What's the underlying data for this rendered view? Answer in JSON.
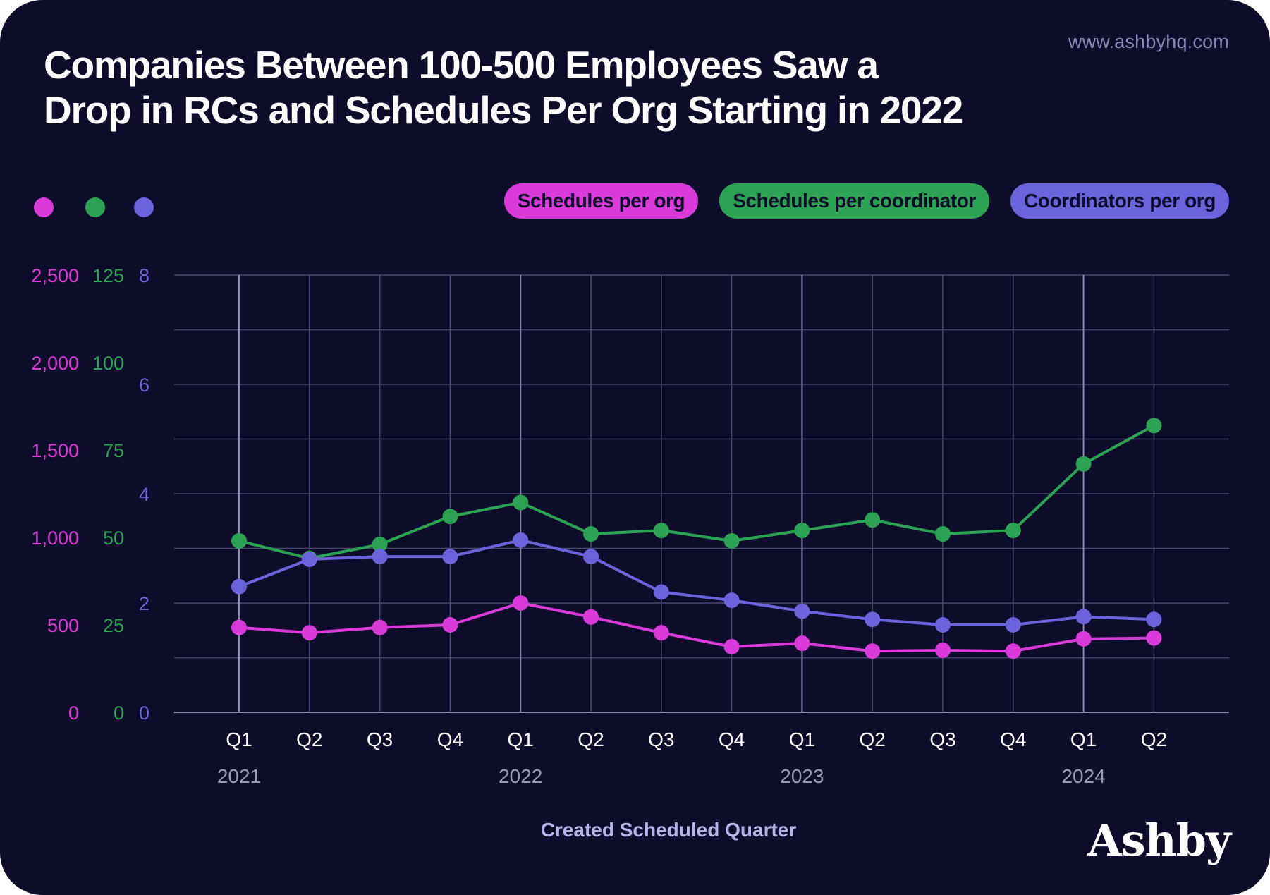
{
  "site": "www.ashbyhq.com",
  "title_line1": "Companies Between 100-500 Employees Saw a",
  "title_line2": "Drop in RCs and Schedules Per Org Starting in 2022",
  "brand": "Ashby",
  "colors": {
    "background": "#0e0c2b",
    "schedules_per_org": "#d93ad9",
    "schedules_per_coordinator": "#2ba353",
    "coordinators_per_org": "#6b63dc",
    "grid": "#4a4870",
    "tick_text": "#ffffff",
    "year_text": "#9a97b8",
    "xlabel_text": "#b7b3ea"
  },
  "chart_data": {
    "type": "line",
    "title": "Companies Between 100-500 Employees Saw a Drop in RCs and Schedules Per Org Starting in 2022",
    "xlabel": "Created Scheduled Quarter",
    "categories": [
      "Q1",
      "Q2",
      "Q3",
      "Q4",
      "Q1",
      "Q2",
      "Q3",
      "Q4",
      "Q1",
      "Q2",
      "Q3",
      "Q4",
      "Q1",
      "Q2"
    ],
    "years": [
      {
        "label": "2021",
        "index": 0
      },
      {
        "label": "2022",
        "index": 4
      },
      {
        "label": "2023",
        "index": 8
      },
      {
        "label": "2024",
        "index": 12
      }
    ],
    "legend_position": "top-right",
    "grid": true,
    "axes": [
      {
        "series": "Schedules per org",
        "ylim": [
          0,
          2500
        ],
        "ticks": [
          0,
          500,
          1000,
          1500,
          2000,
          2500
        ],
        "tick_labels": [
          "0",
          "500",
          "1,000",
          "1,500",
          "2,000",
          "2,500"
        ]
      },
      {
        "series": "Schedules per coordinator",
        "ylim": [
          0,
          125
        ],
        "ticks": [
          0,
          25,
          50,
          75,
          100,
          125
        ],
        "tick_labels": [
          "0",
          "25",
          "50",
          "75",
          "100",
          "125"
        ]
      },
      {
        "series": "Coordinators per org",
        "ylim": [
          0,
          8
        ],
        "ticks": [
          0,
          2,
          4,
          6,
          8
        ],
        "tick_labels": [
          "0",
          "2",
          "4",
          "6",
          "8"
        ]
      }
    ],
    "series": [
      {
        "name": "Schedules per org",
        "axis": 0,
        "values": [
          485,
          455,
          485,
          500,
          625,
          545,
          455,
          375,
          395,
          350,
          355,
          350,
          420,
          425
        ]
      },
      {
        "name": "Schedules per coordinator",
        "axis": 1,
        "values": [
          49,
          44,
          48,
          56,
          60,
          51,
          52,
          49,
          52,
          55,
          51,
          52,
          71,
          82
        ]
      },
      {
        "name": "Coordinators per org",
        "axis": 2,
        "values": [
          2.3,
          2.8,
          2.85,
          2.85,
          3.15,
          2.85,
          2.2,
          2.05,
          1.85,
          1.7,
          1.6,
          1.6,
          1.75,
          1.7
        ]
      }
    ]
  }
}
